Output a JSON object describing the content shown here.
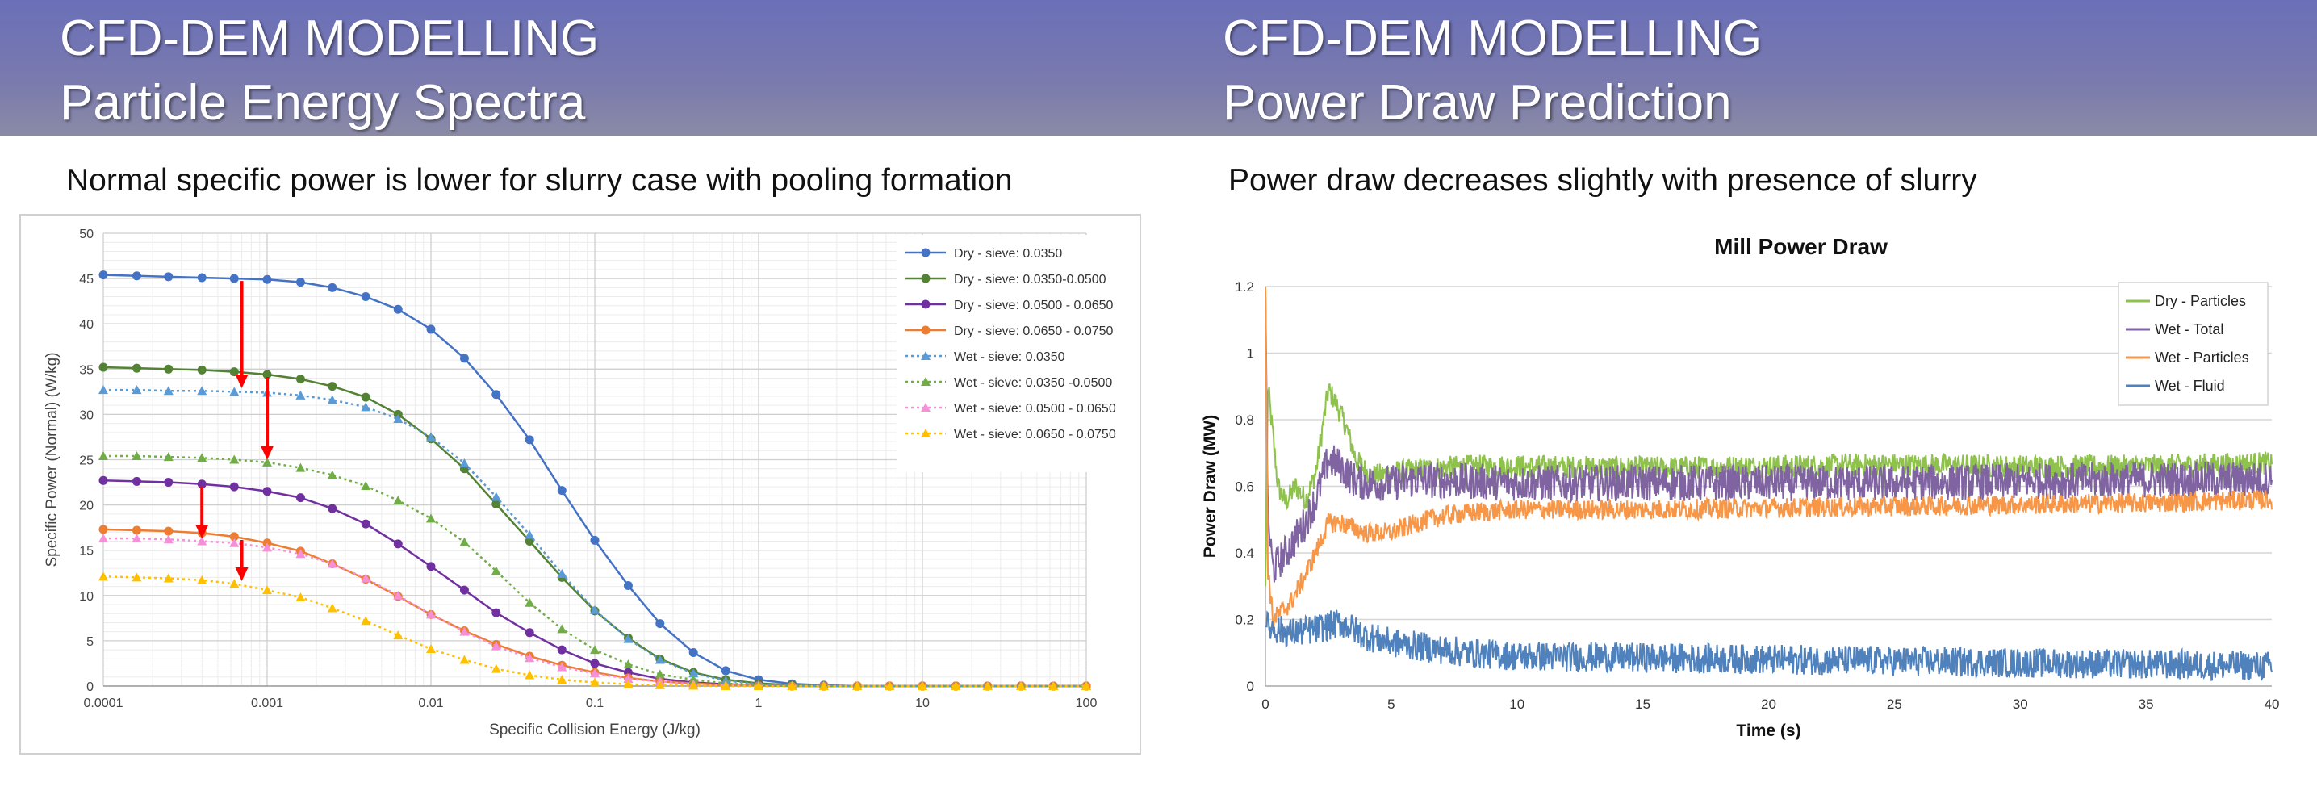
{
  "left": {
    "title_line1": "CFD-DEM MODELLING",
    "title_line2": "Particle Energy Spectra",
    "subtitle": "Normal specific power is lower for slurry case with pooling formation"
  },
  "right": {
    "title_line1": "CFD-DEM MODELLING",
    "title_line2": "Power Draw Prediction",
    "subtitle": "Power draw decreases slightly with presence of slurry"
  },
  "chart_data": [
    {
      "type": "line",
      "title": "",
      "xlabel": "Specific Collision Energy (J/kg)",
      "ylabel": "Specific Power (Normal) (W/kg)",
      "xscale": "log",
      "xlim": [
        0.0001,
        100
      ],
      "ylim": [
        0,
        50
      ],
      "xticks": [
        0.0001,
        0.001,
        0.01,
        0.1,
        1,
        10,
        100
      ],
      "xtick_labels": [
        "0.0001",
        "0.001",
        "0.01",
        "0.1",
        "1",
        "10",
        "100"
      ],
      "yticks": [
        0,
        5,
        10,
        15,
        20,
        25,
        30,
        35,
        40,
        45,
        50
      ],
      "grid": true,
      "legend_position": "top-right",
      "x": [
        0.0001,
        0.00016,
        0.00025,
        0.0004,
        0.00063,
        0.001,
        0.0016,
        0.0025,
        0.004,
        0.0063,
        0.01,
        0.016,
        0.025,
        0.04,
        0.063,
        0.1,
        0.16,
        0.25,
        0.4,
        0.63,
        1,
        1.6,
        2.5,
        4,
        6.3,
        10,
        16,
        25,
        40,
        63,
        100
      ],
      "series": [
        {
          "name": "Dry - sieve: 0.0350",
          "color": "#4472c4",
          "style": "solid",
          "marker": "circle",
          "values": [
            45.4,
            45.3,
            45.2,
            45.1,
            45.0,
            44.9,
            44.6,
            44.0,
            43.0,
            41.6,
            39.4,
            36.2,
            32.2,
            27.2,
            21.6,
            16.1,
            11.1,
            6.9,
            3.7,
            1.7,
            0.7,
            0.25,
            0.1,
            0,
            0,
            0,
            0,
            0,
            0,
            0,
            0
          ]
        },
        {
          "name": "Dry - sieve: 0.0350-0.0500",
          "color": "#548235",
          "style": "solid",
          "marker": "circle",
          "values": [
            35.2,
            35.1,
            35.0,
            34.9,
            34.7,
            34.4,
            33.9,
            33.1,
            31.9,
            30.0,
            27.3,
            24.0,
            20.1,
            16.0,
            12.0,
            8.3,
            5.3,
            3.0,
            1.5,
            0.7,
            0.3,
            0.1,
            0,
            0,
            0,
            0,
            0,
            0,
            0,
            0,
            0
          ]
        },
        {
          "name": "Dry - sieve: 0.0500 - 0.0650",
          "color": "#7030a0",
          "style": "solid",
          "marker": "circle",
          "values": [
            22.7,
            22.6,
            22.5,
            22.3,
            22.0,
            21.5,
            20.8,
            19.6,
            17.9,
            15.7,
            13.2,
            10.6,
            8.1,
            5.9,
            4.0,
            2.5,
            1.5,
            0.8,
            0.4,
            0.2,
            0.1,
            0,
            0,
            0,
            0,
            0,
            0,
            0,
            0,
            0,
            0
          ]
        },
        {
          "name": "Dry - sieve: 0.0650 - 0.0750",
          "color": "#ed7d31",
          "style": "solid",
          "marker": "circle",
          "values": [
            17.3,
            17.2,
            17.1,
            16.9,
            16.5,
            15.8,
            14.9,
            13.5,
            11.8,
            9.9,
            7.9,
            6.1,
            4.6,
            3.3,
            2.3,
            1.5,
            0.9,
            0.5,
            0.3,
            0.1,
            0.05,
            0,
            0,
            0,
            0,
            0,
            0,
            0,
            0,
            0,
            0
          ]
        },
        {
          "name": "Wet - sieve: 0.0350",
          "color": "#5b9bd5",
          "style": "dotted",
          "marker": "triangle",
          "values": [
            32.7,
            32.7,
            32.6,
            32.6,
            32.5,
            32.4,
            32.1,
            31.6,
            30.8,
            29.5,
            27.5,
            24.6,
            20.9,
            16.7,
            12.4,
            8.4,
            5.2,
            2.9,
            1.4,
            0.6,
            0.2,
            0.05,
            0,
            0,
            0,
            0,
            0,
            0,
            0,
            0,
            0
          ]
        },
        {
          "name": "Wet - sieve: 0.0350 -0.0500",
          "color": "#70ad47",
          "style": "dotted",
          "marker": "triangle",
          "values": [
            25.4,
            25.4,
            25.3,
            25.2,
            25.0,
            24.7,
            24.1,
            23.3,
            22.1,
            20.5,
            18.5,
            15.9,
            12.7,
            9.2,
            6.3,
            4.0,
            2.4,
            1.3,
            0.7,
            0.3,
            0.1,
            0,
            0,
            0,
            0,
            0,
            0,
            0,
            0,
            0,
            0
          ]
        },
        {
          "name": "Wet - sieve: 0.0500 - 0.0650",
          "color": "#f48fd8",
          "style": "dotted",
          "marker": "triangle",
          "values": [
            16.3,
            16.3,
            16.2,
            16.0,
            15.8,
            15.3,
            14.6,
            13.5,
            11.9,
            10.0,
            7.9,
            6.0,
            4.4,
            3.1,
            2.1,
            1.4,
            0.8,
            0.5,
            0.2,
            0.1,
            0,
            0,
            0,
            0,
            0,
            0,
            0,
            0,
            0,
            0,
            0
          ]
        },
        {
          "name": "Wet - sieve: 0.0650 - 0.0750",
          "color": "#ffc000",
          "style": "dotted",
          "marker": "triangle",
          "values": [
            12.1,
            12.0,
            11.9,
            11.7,
            11.3,
            10.6,
            9.8,
            8.6,
            7.2,
            5.6,
            4.1,
            2.9,
            1.9,
            1.2,
            0.7,
            0.4,
            0.2,
            0.1,
            0.05,
            0,
            0,
            0,
            0,
            0,
            0,
            0,
            0,
            0,
            0,
            0,
            0
          ]
        }
      ],
      "annotations": [
        {
          "type": "arrow",
          "color": "#ff0000",
          "x": 0.0007,
          "y_from": 45.0,
          "y_to": 32.8
        },
        {
          "type": "arrow",
          "color": "#ff0000",
          "x": 0.001,
          "y_from": 34.4,
          "y_to": 24.9
        },
        {
          "type": "arrow",
          "color": "#ff0000",
          "x": 0.0004,
          "y_from": 22.3,
          "y_to": 16.2
        },
        {
          "type": "arrow",
          "color": "#ff0000",
          "x": 0.0007,
          "y_from": 16.4,
          "y_to": 11.5
        }
      ]
    },
    {
      "type": "line",
      "title": "Mill Power Draw",
      "xlabel": "Time (s)",
      "ylabel": "Power Draw (MW)",
      "xlim": [
        0,
        40
      ],
      "ylim": [
        0,
        1.2
      ],
      "xticks": [
        0,
        5,
        10,
        15,
        20,
        25,
        30,
        35,
        40
      ],
      "yticks": [
        0,
        0.2,
        0.4,
        0.6,
        0.8,
        1,
        1.2
      ],
      "ytick_labels": [
        "0",
        "0.2",
        "0.4",
        "0.6",
        "0.8",
        "1",
        "1.2"
      ],
      "grid": "horizontal",
      "legend_position": "top-right",
      "series": [
        {
          "name": "Dry - Particles",
          "color": "#8fc24d",
          "x": [
            0,
            0.1,
            0.3,
            0.5,
            0.8,
            1.2,
            1.6,
            2,
            2.5,
            2.8,
            3.2,
            3.6,
            4.2,
            5,
            6,
            8,
            10,
            15,
            20,
            25,
            30,
            35,
            40
          ],
          "values": [
            0.3,
            0.9,
            0.75,
            0.6,
            0.55,
            0.6,
            0.56,
            0.64,
            0.89,
            0.85,
            0.78,
            0.68,
            0.63,
            0.64,
            0.65,
            0.66,
            0.66,
            0.655,
            0.66,
            0.665,
            0.66,
            0.66,
            0.67
          ],
          "noise": 0.035
        },
        {
          "name": "Wet - Total",
          "color": "#8064a2",
          "x": [
            0,
            0.1,
            0.3,
            0.6,
            1,
            1.5,
            2,
            2.5,
            3,
            3.5,
            4,
            5,
            6,
            8,
            10,
            15,
            20,
            25,
            30,
            35,
            40
          ],
          "values": [
            1.2,
            0.5,
            0.35,
            0.38,
            0.42,
            0.48,
            0.56,
            0.68,
            0.66,
            0.62,
            0.61,
            0.61,
            0.62,
            0.615,
            0.61,
            0.61,
            0.61,
            0.61,
            0.615,
            0.62,
            0.62
          ],
          "noise": 0.055
        },
        {
          "name": "Wet - Particles",
          "color": "#f79646",
          "x": [
            0,
            0.1,
            0.3,
            0.6,
            1,
            1.5,
            2,
            2.5,
            3,
            4,
            5,
            6,
            7,
            8,
            10,
            15,
            20,
            25,
            30,
            35,
            40
          ],
          "values": [
            1.2,
            0.35,
            0.2,
            0.22,
            0.25,
            0.32,
            0.4,
            0.49,
            0.49,
            0.46,
            0.46,
            0.49,
            0.51,
            0.52,
            0.53,
            0.53,
            0.535,
            0.54,
            0.545,
            0.55,
            0.56
          ],
          "noise": 0.03
        },
        {
          "name": "Wet - Fluid",
          "color": "#4f81bd",
          "x": [
            0,
            0.5,
            1,
            2,
            3,
            4,
            5,
            6,
            8,
            10,
            15,
            20,
            25,
            30,
            35,
            40
          ],
          "values": [
            0.18,
            0.17,
            0.16,
            0.17,
            0.19,
            0.15,
            0.13,
            0.12,
            0.1,
            0.09,
            0.085,
            0.08,
            0.075,
            0.07,
            0.065,
            0.06
          ],
          "noise": 0.045
        }
      ]
    }
  ]
}
